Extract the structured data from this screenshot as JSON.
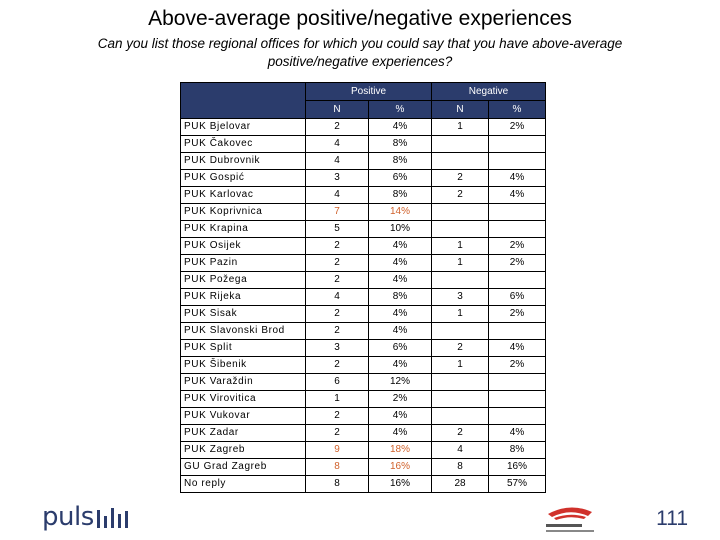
{
  "title": "Above-average positive/negative experiences",
  "subtitle": "Can you list those regional offices for which you could say that you have above-average positive/negative experiences?",
  "table": {
    "group_headers": [
      "Positive",
      "Negative"
    ],
    "sub_headers": [
      "N",
      "%",
      "N",
      "%"
    ],
    "rows": [
      {
        "label": "PUK Bjelovar",
        "cells": [
          "2",
          "4%",
          "1",
          "2%"
        ],
        "highlight": false
      },
      {
        "label": "PUK Čakovec",
        "cells": [
          "4",
          "8%",
          "",
          ""
        ],
        "highlight": false
      },
      {
        "label": "PUK Dubrovnik",
        "cells": [
          "4",
          "8%",
          "",
          ""
        ],
        "highlight": false
      },
      {
        "label": "PUK Gospić",
        "cells": [
          "3",
          "6%",
          "2",
          "4%"
        ],
        "highlight": false
      },
      {
        "label": "PUK Karlovac",
        "cells": [
          "4",
          "8%",
          "2",
          "4%"
        ],
        "highlight": false
      },
      {
        "label": "PUK Koprivnica",
        "cells": [
          "7",
          "14%",
          "",
          ""
        ],
        "highlight": true
      },
      {
        "label": "PUK Krapina",
        "cells": [
          "5",
          "10%",
          "",
          ""
        ],
        "highlight": false
      },
      {
        "label": "PUK Osijek",
        "cells": [
          "2",
          "4%",
          "1",
          "2%"
        ],
        "highlight": false
      },
      {
        "label": "PUK Pazin",
        "cells": [
          "2",
          "4%",
          "1",
          "2%"
        ],
        "highlight": false
      },
      {
        "label": "PUK Požega",
        "cells": [
          "2",
          "4%",
          "",
          ""
        ],
        "highlight": false
      },
      {
        "label": "PUK Rijeka",
        "cells": [
          "4",
          "8%",
          "3",
          "6%"
        ],
        "highlight": false
      },
      {
        "label": "PUK Sisak",
        "cells": [
          "2",
          "4%",
          "1",
          "2%"
        ],
        "highlight": false
      },
      {
        "label": "PUK Slavonski Brod",
        "cells": [
          "2",
          "4%",
          "",
          ""
        ],
        "highlight": false
      },
      {
        "label": "PUK Split",
        "cells": [
          "3",
          "6%",
          "2",
          "4%"
        ],
        "highlight": false
      },
      {
        "label": "PUK Šibenik",
        "cells": [
          "2",
          "4%",
          "1",
          "2%"
        ],
        "highlight": false
      },
      {
        "label": "PUK Varaždin",
        "cells": [
          "6",
          "12%",
          "",
          ""
        ],
        "highlight": false
      },
      {
        "label": "PUK Virovitica",
        "cells": [
          "1",
          "2%",
          "",
          ""
        ],
        "highlight": false
      },
      {
        "label": "PUK Vukovar",
        "cells": [
          "2",
          "4%",
          "",
          ""
        ],
        "highlight": false
      },
      {
        "label": "PUK Zadar",
        "cells": [
          "2",
          "4%",
          "2",
          "4%"
        ],
        "highlight": false
      },
      {
        "label": "PUK Zagreb",
        "cells": [
          "9",
          "18%",
          "4",
          "8%"
        ],
        "highlight": true
      },
      {
        "label": "GU Grad Zagreb",
        "cells": [
          "8",
          "16%",
          "8",
          "16%"
        ],
        "highlight": true
      },
      {
        "label": "No reply",
        "cells": [
          "8",
          "16%",
          "28",
          "57%"
        ],
        "highlight": false
      }
    ]
  },
  "colors": {
    "header_bg": "#2b3c6c",
    "highlight_text": "#d0612b",
    "brand": "#2b3c6c"
  },
  "footer": {
    "brand_text": "puls",
    "page_number": "111",
    "right_logo_icon": "ship-logo-icon"
  }
}
